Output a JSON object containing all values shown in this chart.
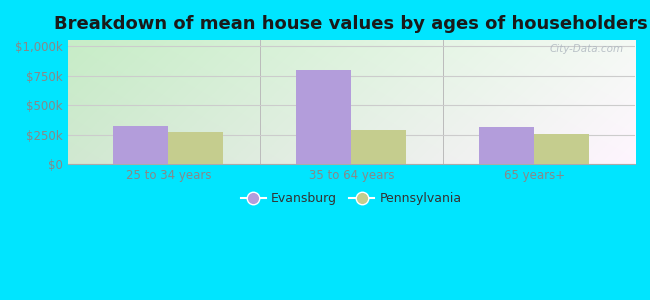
{
  "title": "Breakdown of mean house values by ages of householders",
  "categories": [
    "25 to 34 years",
    "35 to 64 years",
    "65 years+"
  ],
  "evansburg_values": [
    325000,
    800000,
    318000
  ],
  "pennsylvania_values": [
    272000,
    290000,
    252000
  ],
  "evansburg_color": "#b39ddb",
  "pennsylvania_color": "#c5cd8e",
  "yticks": [
    0,
    250000,
    500000,
    750000,
    1000000
  ],
  "ytick_labels": [
    "$0",
    "$250k",
    "$500k",
    "$750k",
    "$1,000k"
  ],
  "ylim": [
    0,
    1050000
  ],
  "background_outer": "#00e5ff",
  "legend_labels": [
    "Evansburg",
    "Pennsylvania"
  ],
  "title_fontsize": 13,
  "watermark": "City-Data.com",
  "bar_width": 0.3,
  "tick_color": "#888888",
  "grid_color": "#cccccc"
}
